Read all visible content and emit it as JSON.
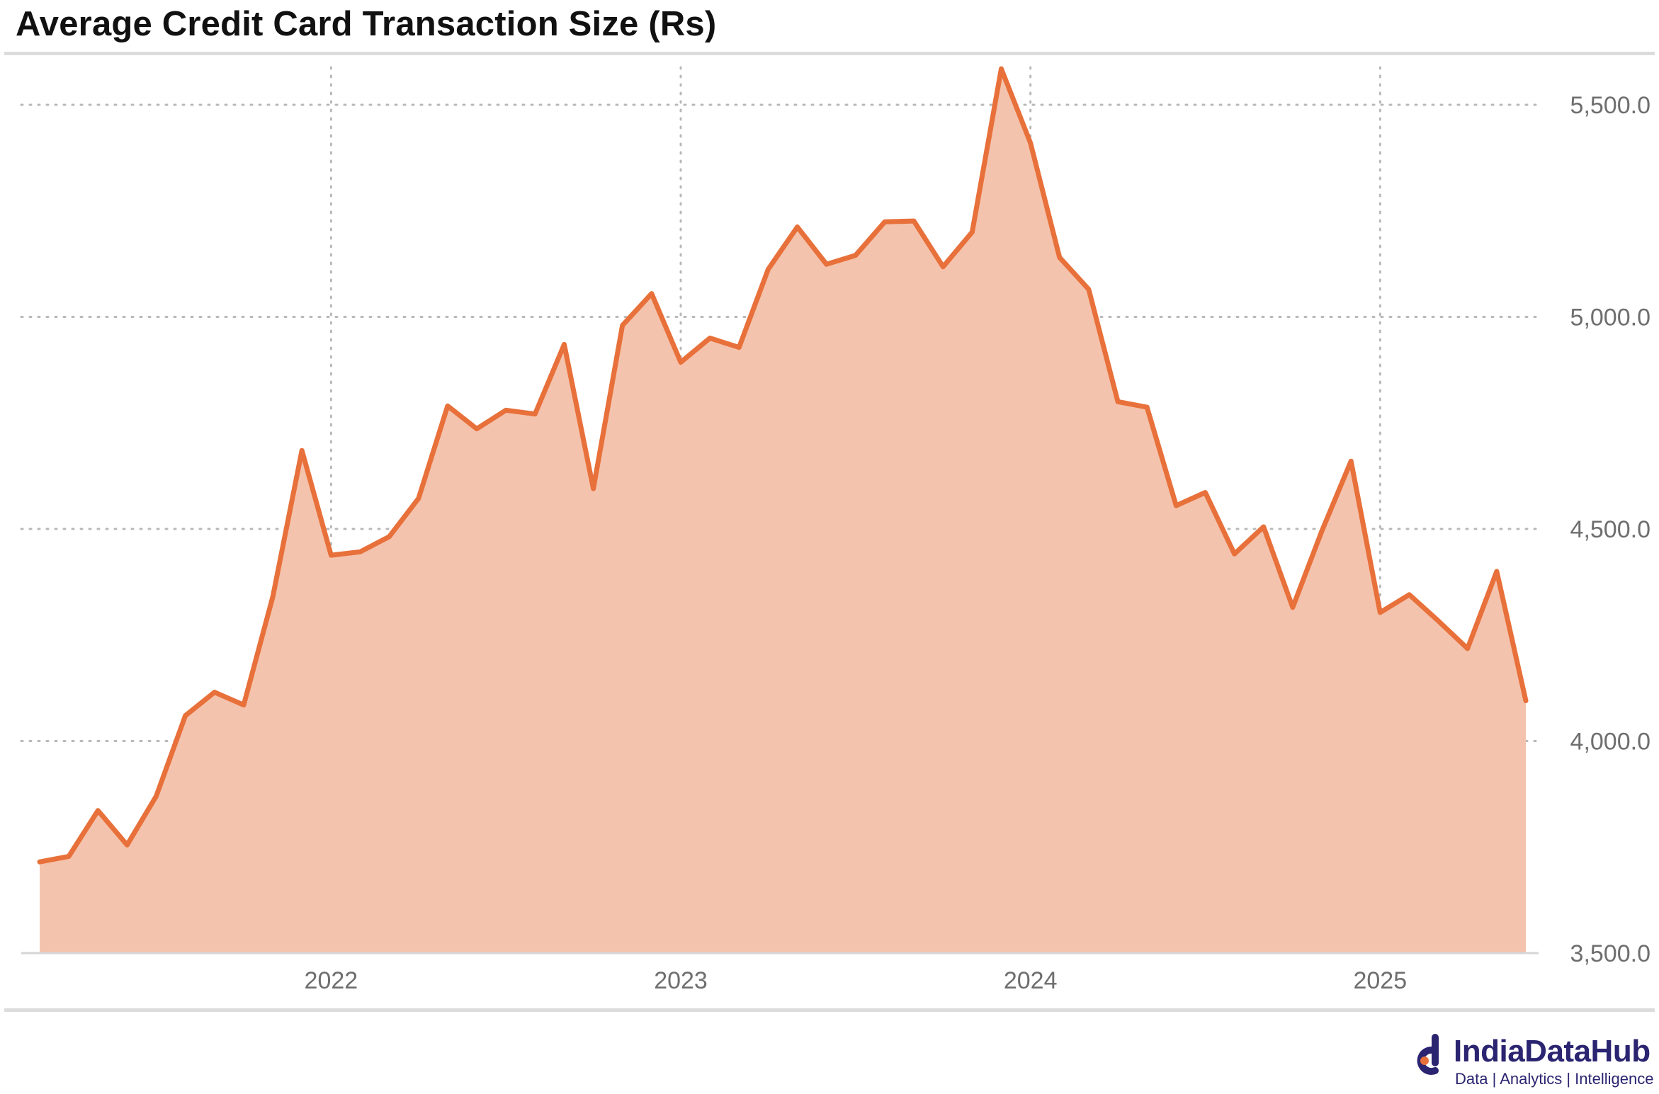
{
  "title": "Average Credit Card Transaction Size (Rs)",
  "brand": {
    "name": "IndiaDataHub",
    "tagline": "Data | Analytics | Intelligence"
  },
  "colors": {
    "line": "#e8703a",
    "fill": "#f4c3ad",
    "grid": "#b8b8b8",
    "axis": "#d6d6d6",
    "brand": "#2b2470"
  },
  "chart_data": {
    "type": "area",
    "title": "Average Credit Card Transaction Size (Rs)",
    "xlabel": "",
    "ylabel": "",
    "x": [
      "2021-03",
      "2021-04",
      "2021-05",
      "2021-06",
      "2021-07",
      "2021-08",
      "2021-09",
      "2021-10",
      "2021-11",
      "2021-12",
      "2022-01",
      "2022-02",
      "2022-03",
      "2022-04",
      "2022-05",
      "2022-06",
      "2022-07",
      "2022-08",
      "2022-09",
      "2022-10",
      "2022-11",
      "2022-12",
      "2023-01",
      "2023-02",
      "2023-03",
      "2023-04",
      "2023-05",
      "2023-06",
      "2023-07",
      "2023-08",
      "2023-09",
      "2023-10",
      "2023-11",
      "2023-12",
      "2024-01",
      "2024-02",
      "2024-03",
      "2024-04",
      "2024-05",
      "2024-06",
      "2024-07",
      "2024-08",
      "2024-09",
      "2024-10",
      "2024-11",
      "2024-12",
      "2025-01",
      "2025-02",
      "2025-03",
      "2025-04",
      "2025-05",
      "2025-06"
    ],
    "series": [
      {
        "values": [
          3715,
          3728,
          3836,
          3755,
          3870,
          4060,
          4115,
          4085,
          4340,
          4685,
          4438,
          4446,
          4482,
          4572,
          4790,
          4736,
          4780,
          4771,
          4935,
          4595,
          4980,
          5055,
          4893,
          4950,
          4928,
          5112,
          5212,
          5124,
          5145,
          5224,
          5226,
          5118,
          5200,
          5585,
          5410,
          5140,
          5065,
          4800,
          4787,
          4555,
          4586,
          4441,
          4505,
          4315,
          4495,
          4660,
          4303,
          4345,
          4283,
          4218,
          4400,
          4095
        ]
      }
    ],
    "x_ticks": [
      "2022",
      "2023",
      "2024",
      "2025"
    ],
    "y_ticks": [
      "3,500.0",
      "4,000.0",
      "4,500.0",
      "5,000.0",
      "5,500.0"
    ],
    "ylim": [
      3500,
      5700
    ],
    "grid": "dotted, horizontal and vertical",
    "y_axis_position": "right",
    "legend": "none"
  }
}
